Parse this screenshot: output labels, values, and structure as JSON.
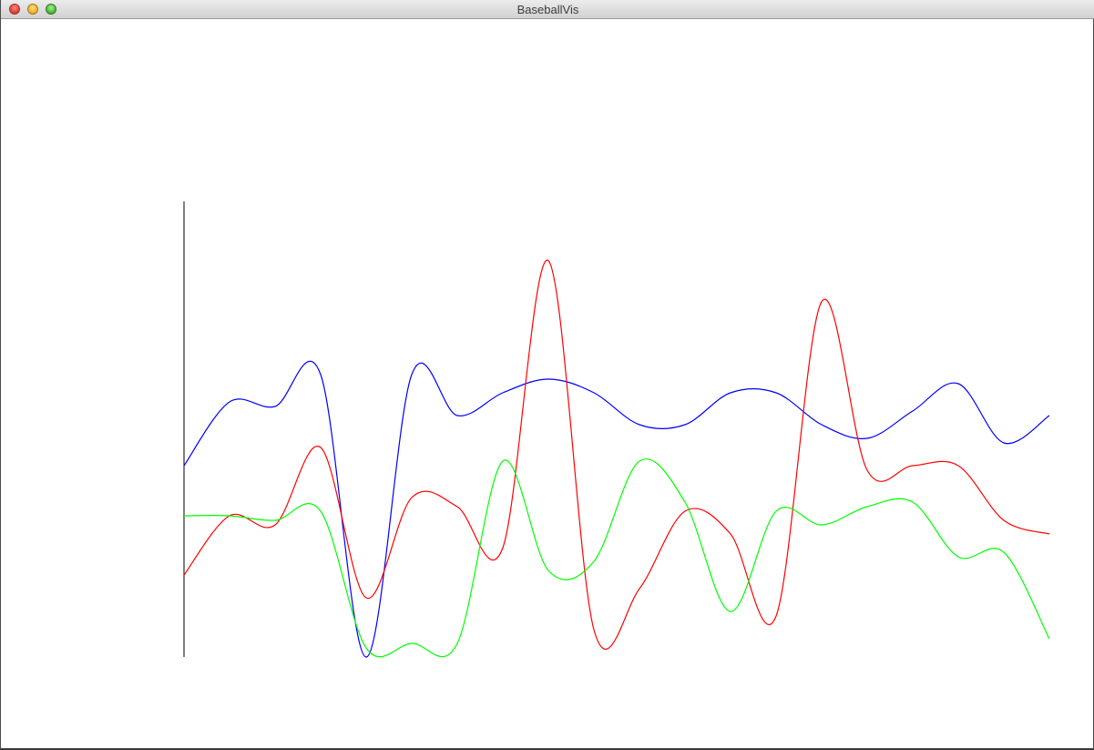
{
  "window": {
    "title": "BaseballVis"
  },
  "colors": {
    "series_1": "#0000ff",
    "series_2": "#ff0000",
    "series_3": "#00ff00",
    "axis": "#000000"
  },
  "chart_data": {
    "type": "line",
    "interpolation": "smooth",
    "grid": false,
    "legend": "none",
    "x": [
      0,
      1,
      2,
      3,
      4,
      5,
      6,
      7,
      8,
      9,
      10,
      11,
      12,
      13,
      14,
      15,
      16,
      17,
      18,
      19
    ],
    "ylim": [
      0,
      100
    ],
    "series": [
      {
        "color": "#0000ff",
        "values": [
          42,
          56,
          55,
          62,
          0,
          62,
          53,
          58,
          61,
          58,
          51,
          51,
          58,
          58,
          51,
          48,
          54,
          60,
          47,
          53
        ]
      },
      {
        "color": "#ff0000",
        "values": [
          18,
          31,
          29,
          46,
          13,
          35,
          33,
          24,
          87,
          6,
          15,
          32,
          27,
          9,
          78,
          41,
          42,
          42,
          30,
          27
        ]
      },
      {
        "color": "#00ff00",
        "values": [
          31,
          31,
          30,
          32,
          2,
          3,
          3,
          43,
          19,
          21,
          43,
          34,
          10,
          32,
          29,
          33,
          34,
          22,
          23,
          4
        ]
      }
    ]
  }
}
